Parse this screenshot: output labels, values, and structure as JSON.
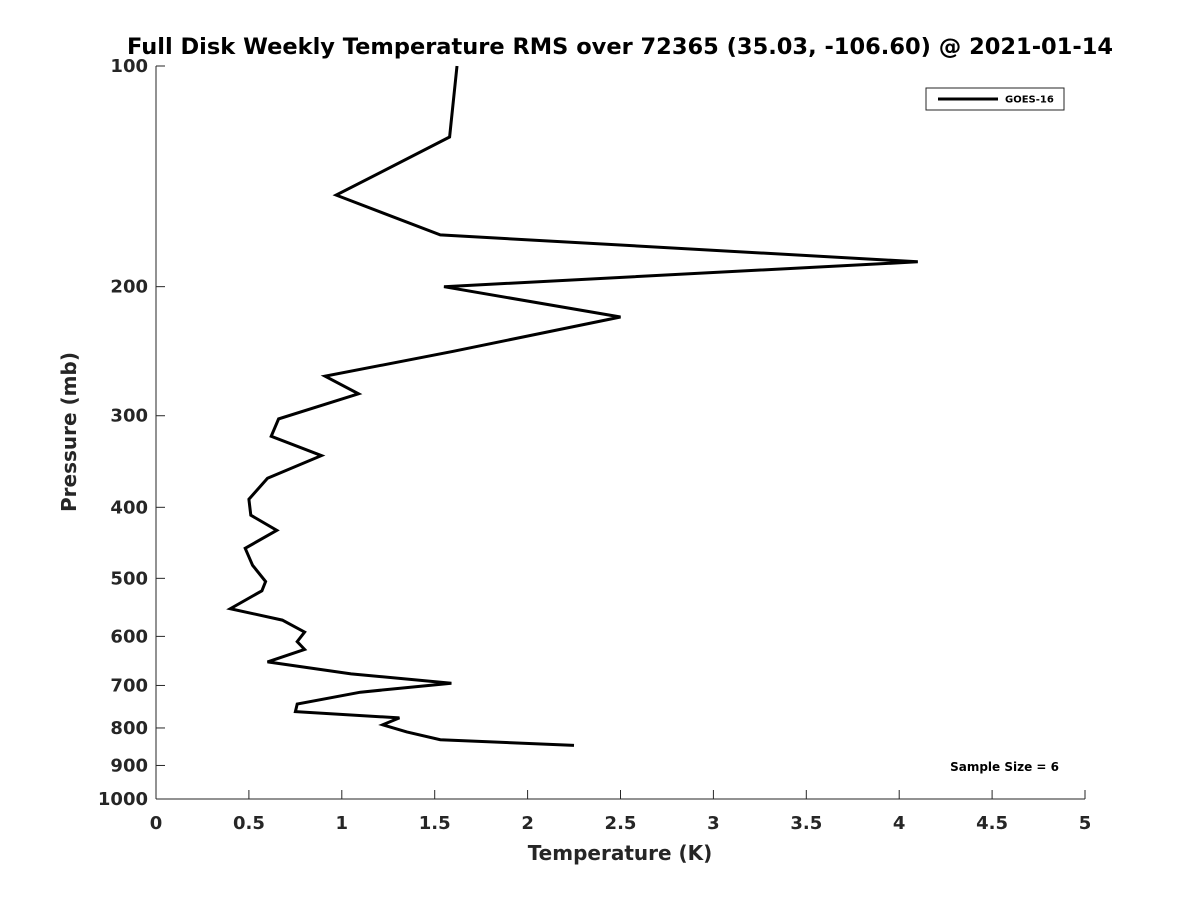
{
  "chart_data": {
    "type": "line",
    "title": "Full Disk Weekly Temperature RMS over 72365 (35.03, -106.60) @ 2021-01-14",
    "xlabel": "Temperature (K)",
    "ylabel": "Pressure (mb)",
    "xlim": [
      0,
      5
    ],
    "ylim": [
      100,
      1000
    ],
    "yscale": "log",
    "yreversed": true,
    "xticks": [
      0,
      0.5,
      1,
      1.5,
      2,
      2.5,
      3,
      3.5,
      4,
      4.5,
      5
    ],
    "xtick_labels": [
      "0",
      "0.5",
      "1",
      "1.5",
      "2",
      "2.5",
      "3",
      "3.5",
      "4",
      "4.5",
      "5"
    ],
    "yticks": [
      100,
      200,
      300,
      400,
      500,
      600,
      700,
      800,
      900,
      1000
    ],
    "ytick_labels": [
      "100",
      "200",
      "300",
      "400",
      "500",
      "600",
      "700",
      "800",
      "900",
      "1000"
    ],
    "grid": false,
    "legend_position": "top-right",
    "series": [
      {
        "name": "GOES-16",
        "color": "#000000",
        "points": [
          [
            1.62,
            100
          ],
          [
            1.58,
            125
          ],
          [
            0.97,
            150
          ],
          [
            1.53,
            170
          ],
          [
            4.1,
            185
          ],
          [
            1.55,
            200
          ],
          [
            2.5,
            220
          ],
          [
            1.6,
            245
          ],
          [
            0.91,
            265
          ],
          [
            1.09,
            280
          ],
          [
            0.66,
            303
          ],
          [
            0.62,
            320
          ],
          [
            0.89,
            340
          ],
          [
            0.6,
            365
          ],
          [
            0.5,
            390
          ],
          [
            0.51,
            410
          ],
          [
            0.65,
            430
          ],
          [
            0.48,
            455
          ],
          [
            0.52,
            480
          ],
          [
            0.59,
            505
          ],
          [
            0.57,
            520
          ],
          [
            0.4,
            550
          ],
          [
            0.68,
            570
          ],
          [
            0.8,
            592
          ],
          [
            0.76,
            610
          ],
          [
            0.8,
            625
          ],
          [
            0.6,
            650
          ],
          [
            1.05,
            675
          ],
          [
            1.59,
            695
          ],
          [
            1.1,
            715
          ],
          [
            0.76,
            742
          ],
          [
            0.75,
            760
          ],
          [
            1.31,
            775
          ],
          [
            1.22,
            792
          ],
          [
            1.35,
            810
          ],
          [
            1.53,
            830
          ],
          [
            2.25,
            845
          ]
        ]
      }
    ],
    "annotation": "Sample Size = 6"
  }
}
